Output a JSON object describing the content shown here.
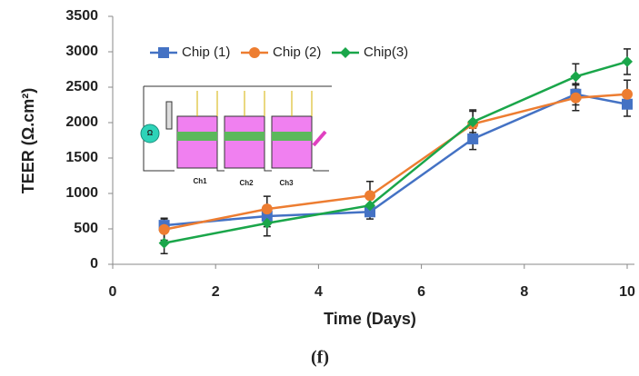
{
  "chart_data": {
    "type": "line",
    "x_label": "Time (Days)",
    "y_label": "TEER (Ω.cm²)",
    "x": [
      1,
      3,
      5,
      7,
      9,
      10
    ],
    "series": [
      {
        "name": "Chip (1)",
        "color": "#4472c4",
        "marker": "square",
        "values": [
          550,
          680,
          740,
          1770,
          2400,
          2260
        ],
        "errors": [
          100,
          150,
          100,
          150,
          150,
          170
        ]
      },
      {
        "name": "Chip (2)",
        "color": "#ed7d31",
        "marker": "circle",
        "values": [
          490,
          780,
          970,
          1980,
          2350,
          2400
        ],
        "errors": [
          150,
          180,
          200,
          200,
          180,
          200
        ]
      },
      {
        "name": "Chip(3)",
        "color": "#1aa64a",
        "marker": "diamond",
        "values": [
          300,
          580,
          830,
          2010,
          2650,
          2860
        ],
        "errors": [
          150,
          180,
          150,
          150,
          180,
          180
        ]
      }
    ],
    "xlim": [
      0,
      10
    ],
    "xticks": [
      0,
      2,
      4,
      6,
      8,
      10
    ],
    "ylim": [
      0,
      3500
    ],
    "yticks": [
      0,
      500,
      1000,
      1500,
      2000,
      2500,
      3000,
      3500
    ],
    "grid": false,
    "legend": "top-left",
    "inset_labels": [
      "Ω",
      "Ch1",
      "Ch2",
      "Ch3"
    ]
  },
  "caption": "(f)"
}
